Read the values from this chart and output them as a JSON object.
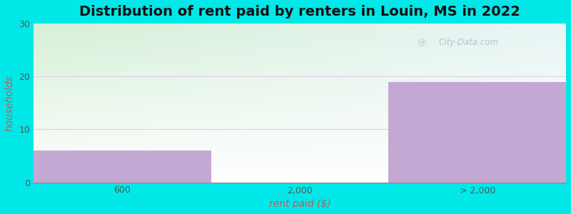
{
  "title": "Distribution of rent paid by renters in Louin, MS in 2022",
  "categories": [
    "600",
    "2,000",
    "> 2,000"
  ],
  "values": [
    6,
    0,
    19
  ],
  "bar_color": "#c4a8d4",
  "ylabel": "households",
  "xlabel": "rent paid ($)",
  "ylim": [
    0,
    30
  ],
  "yticks": [
    0,
    10,
    20,
    30
  ],
  "bg_outer": "#00e8e8",
  "plot_bg_color_topleft": "#d8f0d8",
  "plot_bg_color_topright": "#eaf5f5",
  "plot_bg_color_bottom": "#ffffff",
  "title_fontsize": 14,
  "axis_label_fontsize": 10,
  "tick_fontsize": 9,
  "watermark_text": "City-Data.com",
  "grid_color": "#e0d0e8",
  "label_color": "#cc5555",
  "tick_color": "#555555"
}
